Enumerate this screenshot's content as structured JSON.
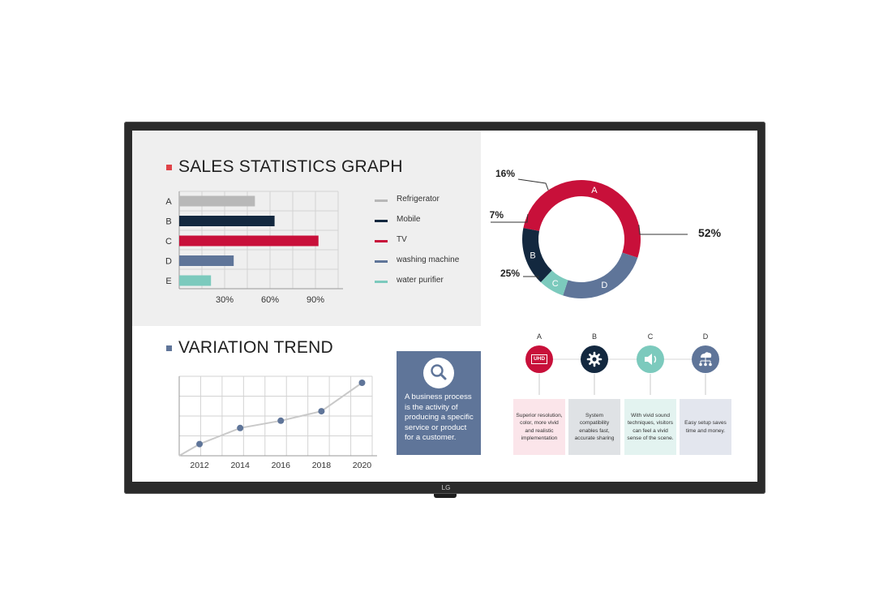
{
  "brand": "LG",
  "sales": {
    "title": "SALES STATISTICS GRAPH",
    "square_color": "#e04348"
  },
  "trend": {
    "title": "VARIATION TREND",
    "square_color": "#5f7599"
  },
  "legend": [
    {
      "label": "Refrigerator",
      "color": "#b8b8b8"
    },
    {
      "label": "Mobile",
      "color": "#13283f"
    },
    {
      "label": "TV",
      "color": "#c8103a"
    },
    {
      "label": "washing machine",
      "color": "#5f7599"
    },
    {
      "label": "water purifier",
      "color": "#7ccabd"
    }
  ],
  "info_box": {
    "text": "A business process is the activity of producing a specific service or product for a customer.",
    "icon": "search-icon"
  },
  "features": [
    {
      "letter": "A",
      "icon": "uhd-icon",
      "icon_text": "UHD",
      "color": "#c8103a",
      "card_color": "#fbe5ea",
      "text": "Superior resolution, color, more vivid and realistic implementation"
    },
    {
      "letter": "B",
      "icon": "gear-icon",
      "color": "#13283f",
      "card_color": "#dfe2e5",
      "text": "System compatibility enables fast, accurate sharing"
    },
    {
      "letter": "C",
      "icon": "speaker-icon",
      "color": "#7ccabd",
      "card_color": "#e3f3f0",
      "text": "With vivid sound techniques, visitors can feel a vivid sense of the scene."
    },
    {
      "letter": "D",
      "icon": "network-icon",
      "color": "#5f7599",
      "card_color": "#e3e6ee",
      "text": "Easy setup saves time and money."
    }
  ],
  "chart_data": [
    {
      "type": "bar",
      "orientation": "horizontal",
      "categories": [
        "A",
        "B",
        "C",
        "D",
        "E"
      ],
      "values": [
        50,
        63,
        92,
        36,
        21
      ],
      "colors": [
        "#b8b8b8",
        "#13283f",
        "#c8103a",
        "#5f7599",
        "#7ccabd"
      ],
      "x_ticks": [
        "30%",
        "60%",
        "90%"
      ],
      "xlim": [
        0,
        105
      ],
      "grid": true
    },
    {
      "type": "pie",
      "donut": true,
      "slices": [
        {
          "label": "A",
          "value": 52,
          "display": "52%",
          "color": "#c8103a"
        },
        {
          "label": "D",
          "value": 25,
          "display": "25%",
          "color": "#5f7599"
        },
        {
          "label": "C",
          "value": 7,
          "display": "7%",
          "color": "#7ccabd"
        },
        {
          "label": "B",
          "value": 16,
          "display": "16%",
          "color": "#13283f"
        }
      ]
    },
    {
      "type": "line",
      "x_ticks": [
        "2012",
        "2014",
        "2016",
        "2018",
        "2020"
      ],
      "x": [
        2011,
        2012,
        2014,
        2016,
        2018,
        2020
      ],
      "y": [
        0,
        16,
        38,
        48,
        61,
        100
      ],
      "marker_from_index": 1,
      "line_color": "#c9c9c9",
      "marker_color": "#5f7599",
      "grid": true
    }
  ]
}
